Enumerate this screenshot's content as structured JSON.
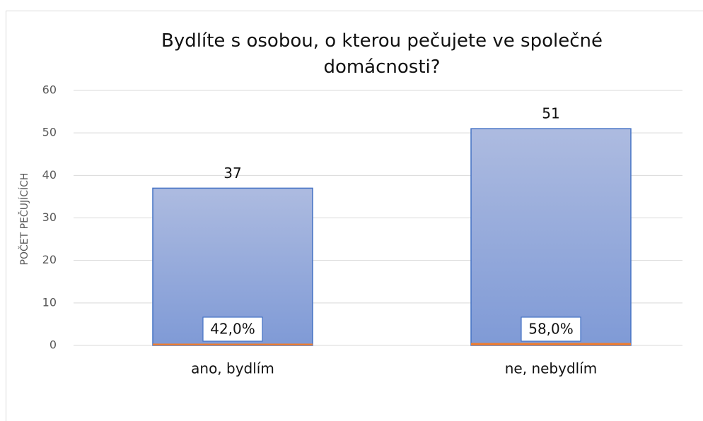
{
  "chart_data": {
    "type": "bar",
    "title": "Bydlíte s osobou, o kterou pečujete ve společné domácnosti?",
    "y_label": "POČET PEČUJÍCÍCH",
    "categories": [
      "ano, bydlím",
      "ne, nebydlím"
    ],
    "series": [
      {
        "color": "#8fa5da",
        "values": [
          37,
          51
        ]
      },
      {
        "color": "#ed7d31",
        "values": [
          0.42,
          0.58
        ],
        "value_labels": [
          "42,0%",
          "58,0%"
        ]
      }
    ],
    "ylim": [
      0,
      60
    ],
    "yticks": [
      0,
      10,
      20,
      30,
      40,
      50,
      60
    ],
    "grid": true
  }
}
